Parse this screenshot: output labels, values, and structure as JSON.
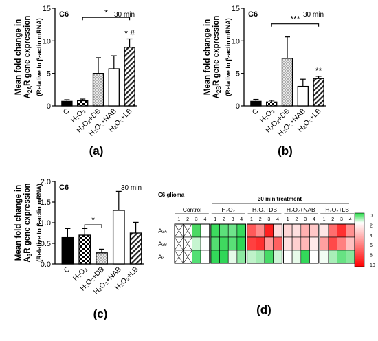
{
  "bar_charts": [
    {
      "label": "(a)",
      "tag": "C6",
      "time": "30 min",
      "ylabel_line1": "Mean fold change in",
      "ylabel_line2_pre": "A",
      "ylabel_line2_sub": "2A",
      "ylabel_line2_post": "R gene expression",
      "ylabel_line3": "(Relative to β-actin mRNA)",
      "ymin": 0,
      "ymax": 15,
      "yticks": [
        "0",
        "5",
        "10",
        "15"
      ],
      "categories": [
        "C",
        "H₂O₂",
        "H₂O₂+DB",
        "H₂O₂+NAB",
        "H₂O₂+LB"
      ],
      "values": [
        0.7,
        0.8,
        5.0,
        5.7,
        9.0
      ],
      "errors": [
        0.25,
        0.25,
        2.4,
        2.0,
        1.3
      ],
      "annotations": [
        {
          "bar": 4,
          "text": "* #"
        },
        {
          "bar": 2,
          "text": ""
        }
      ],
      "bracket": {
        "from": 1,
        "to": 4,
        "level": 13.6,
        "text": "*"
      }
    },
    {
      "label": "(b)",
      "tag": "C6",
      "time": "30 min",
      "ylabel_line1": "Mean fold change in",
      "ylabel_line2_pre": "A",
      "ylabel_line2_sub": "2B",
      "ylabel_line2_post": "R gene expression",
      "ylabel_line3": "(Relative to β-actin mRNA)",
      "ymin": 0,
      "ymax": 15,
      "yticks": [
        "0",
        "5",
        "10",
        "15"
      ],
      "categories": [
        "C",
        "H₂O₂",
        "H₂O₂+DB",
        "H₂O₂+NAB",
        "H₂O₂+LB"
      ],
      "values": [
        0.7,
        0.6,
        7.3,
        3.0,
        4.2
      ],
      "errors": [
        0.3,
        0.25,
        3.3,
        1.1,
        0.35
      ],
      "annotations": [
        {
          "bar": 4,
          "text": "**"
        }
      ],
      "bracket": {
        "from": 1,
        "to": 4,
        "level": 12.6,
        "text": "***"
      }
    },
    {
      "label": "(c)",
      "tag": "C6",
      "time": "30 min",
      "ylabel_line1": "Mean fold change in",
      "ylabel_line2_pre": "A",
      "ylabel_line2_sub": "3",
      "ylabel_line2_post": "R gene expression",
      "ylabel_line3": "(Relative to β-actin mRNA)",
      "ymin": 0,
      "ymax": 2.0,
      "yticks": [
        "0.0",
        "0.5",
        "1.0",
        "1.5",
        "2.0"
      ],
      "categories": [
        "C",
        "H₂O₂",
        "H₂O₂+DB",
        "H₂O₂+NAB",
        "H₂O₂+LB"
      ],
      "values": [
        0.64,
        0.7,
        0.27,
        1.3,
        0.75
      ],
      "errors": [
        0.22,
        0.16,
        0.09,
        0.46,
        0.26
      ],
      "annotations": [],
      "bracket": {
        "from": 1,
        "to": 2,
        "level": 0.95,
        "text": "*"
      }
    }
  ],
  "heatmap": {
    "label": "(d)",
    "title": "C6 glioma",
    "treatment_header": "30 min treatment",
    "groups": [
      "Control",
      "H₂O₂",
      "H₂O₂+DB",
      "H₂O₂+NAB",
      "H₂O₂+LB"
    ],
    "cols": [
      "1",
      "2",
      "3",
      "4"
    ],
    "rows": [
      {
        "pre": "A",
        "sub": "2A"
      },
      {
        "pre": "A",
        "sub": "2B"
      },
      {
        "pre": "A",
        "sub": "3"
      }
    ],
    "colorbar_ticks": [
      "0",
      "2",
      "4",
      "6",
      "8",
      "10"
    ],
    "cells": [
      [
        "x",
        "x",
        "#4cd964",
        "#ffffff",
        "#3ddc5e",
        "#5ce07a",
        "#6fe48b",
        "#37d95c",
        "#ff5a5a",
        "#ff8c8c",
        "#ff2020",
        "#ffdede",
        "#ffd6d6",
        "#ffe0e0",
        "#ffb0b0",
        "#ffc8c8",
        "#ffe6e6",
        "#ff6e6e",
        "#ff3030",
        "#ff9090"
      ],
      [
        "x",
        "x",
        "#c6f5d0",
        "#ffffff",
        "#53dd71",
        "#3fd95f",
        "#5ae078",
        "#2fd655",
        "#ff4040",
        "#ff3030",
        "#ff9a9a",
        "#ff6060",
        "#ffe0e0",
        "#ffd0d0",
        "#ffb8b8",
        "#ffeaea",
        "#ffa0a0",
        "#ff4a4a",
        "#ff8080",
        "#ffc0c0"
      ],
      [
        "x",
        "x",
        "#52df74",
        "#ffffff",
        "#33d85a",
        "#30d658",
        "#e5fbe9",
        "#8ce9a1",
        "#bff2c9",
        "#a3ecb3",
        "#46db67",
        "#cdf5d6",
        "#ffffff",
        "#e7fbea",
        "#33d85a",
        "#ffffff",
        "#f2fdf4",
        "#a8eeb8",
        "#67e283",
        "#86e79c"
      ]
    ]
  }
}
